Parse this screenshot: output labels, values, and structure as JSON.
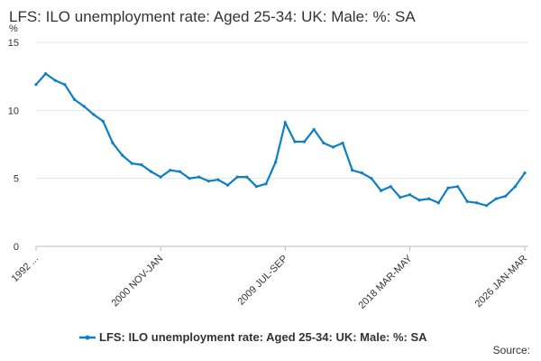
{
  "chart_data": {
    "type": "line",
    "title": "LFS: ILO unemployment rate: Aged 25-34: UK: Male: %: SA",
    "y_unit": "%",
    "source": "Source:",
    "categories": [
      "1992 ...",
      null,
      null,
      null,
      null,
      null,
      null,
      null,
      null,
      null,
      null,
      null,
      null,
      "2000 NOV-JAN",
      null,
      null,
      null,
      null,
      null,
      null,
      null,
      null,
      null,
      null,
      null,
      null,
      "2009 JUL-SEP",
      null,
      null,
      null,
      null,
      null,
      null,
      null,
      null,
      null,
      null,
      null,
      null,
      "2018 MAR-MAY",
      null,
      null,
      null,
      null,
      null,
      null,
      null,
      null,
      null,
      null,
      null,
      "2026 JAN-MAR"
    ],
    "series": [
      {
        "name": "LFS: ILO unemployment rate: Aged 25-34: UK: Male: %: SA",
        "color": "#0d7fc4",
        "values": [
          11.9,
          12.7,
          12.2,
          11.9,
          10.8,
          10.3,
          9.7,
          9.2,
          7.6,
          6.7,
          6.1,
          6.0,
          5.5,
          5.1,
          5.6,
          5.5,
          5.0,
          5.1,
          4.8,
          4.9,
          4.5,
          5.1,
          5.1,
          4.4,
          4.6,
          6.2,
          9.1,
          7.7,
          7.7,
          8.6,
          7.6,
          7.3,
          7.6,
          5.6,
          5.4,
          5.0,
          4.1,
          4.4,
          3.6,
          3.8,
          3.4,
          3.5,
          3.2,
          4.3,
          4.4,
          3.3,
          3.2,
          3.0,
          3.5,
          3.7,
          4.4,
          5.4
        ]
      }
    ],
    "ylim": [
      0,
      15
    ],
    "yticks": [
      0,
      5,
      10,
      15
    ],
    "grid": true
  }
}
